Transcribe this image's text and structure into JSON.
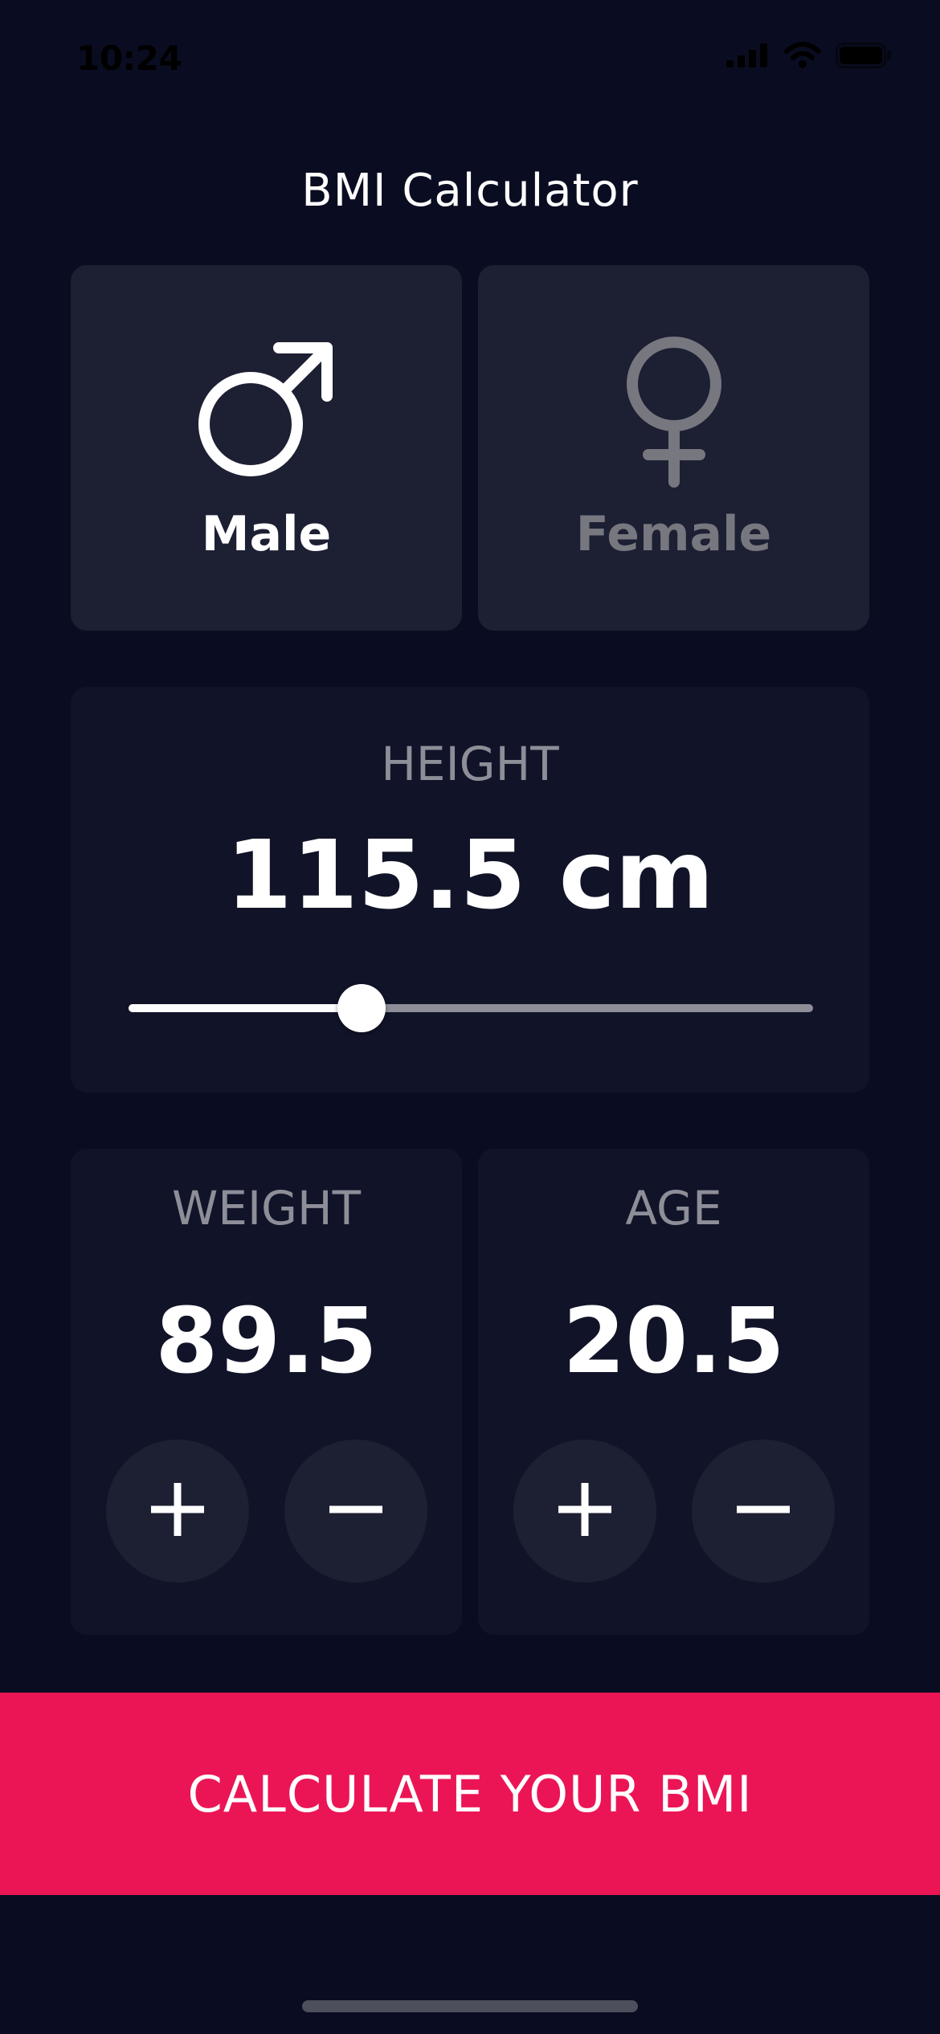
{
  "status_bar": {
    "time": "10:24"
  },
  "app": {
    "title": "BMI Calculator"
  },
  "gender": {
    "male_label": "Male",
    "female_label": "Female",
    "selected": "Male"
  },
  "height": {
    "label": "HEIGHT",
    "value_text": "115.5 cm",
    "slider_fraction": 0.34
  },
  "weight": {
    "label": "WEIGHT",
    "value": "89.5"
  },
  "age": {
    "label": "AGE",
    "value": "20.5"
  },
  "calculate_button": {
    "label": "CALCULATE YOUR BMI"
  },
  "colors": {
    "background": "#0a0d21",
    "active_card": "#1d1f33",
    "inactive_card": "#111428",
    "accent": "#eb1555",
    "label_grey": "#8d8e98"
  },
  "icons": {
    "male": "male-symbol-icon",
    "female": "female-symbol-icon",
    "plus": "plus-icon",
    "minus": "minus-icon"
  }
}
